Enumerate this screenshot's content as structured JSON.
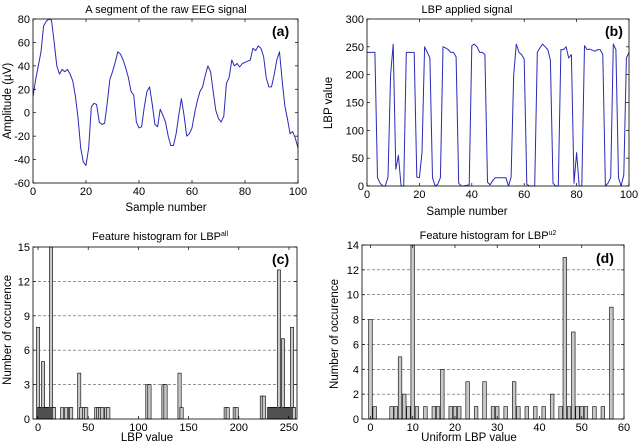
{
  "chart_data": [
    {
      "type": "line",
      "panel_label": "(a)",
      "title": "A segment of the raw EEG signal",
      "xlabel": "Sample number",
      "ylabel": "Amplitude (µV)",
      "xlim": [
        0,
        100
      ],
      "ylim": [
        -60,
        80
      ],
      "xticks": [
        0,
        20,
        40,
        60,
        80,
        100
      ],
      "yticks": [
        -60,
        -40,
        -20,
        0,
        20,
        40,
        60,
        80
      ],
      "grid": false,
      "line_color": "#2a2ab8",
      "series": [
        {
          "x": [
            0,
            1,
            2,
            3,
            4,
            5,
            6,
            7,
            8,
            9,
            10,
            11,
            12,
            13,
            14,
            15,
            16,
            17,
            18,
            19,
            20,
            21,
            22,
            23,
            24,
            25,
            26,
            27,
            28,
            29,
            30,
            31,
            32,
            33,
            34,
            35,
            36,
            37,
            38,
            39,
            40,
            41,
            42,
            43,
            44,
            45,
            46,
            47,
            48,
            49,
            50,
            51,
            52,
            53,
            54,
            55,
            56,
            57,
            58,
            59,
            60,
            61,
            62,
            63,
            64,
            65,
            66,
            67,
            68,
            69,
            70,
            71,
            72,
            73,
            74,
            75,
            76,
            77,
            78,
            79,
            80,
            81,
            82,
            83,
            84,
            85,
            86,
            87,
            88,
            89,
            90,
            91,
            92,
            93,
            94,
            95,
            96,
            97,
            98,
            99,
            100
          ],
          "values": [
            14,
            28,
            40,
            52,
            74,
            78,
            80,
            79,
            60,
            40,
            33,
            37,
            35,
            37,
            33,
            27,
            14,
            -5,
            -30,
            -42,
            -45,
            -30,
            5,
            8,
            7,
            -8,
            -10,
            -9,
            8,
            28,
            35,
            43,
            52,
            50,
            45,
            38,
            30,
            18,
            15,
            -8,
            -13,
            -12,
            5,
            18,
            22,
            7,
            -10,
            -12,
            3,
            -2,
            -8,
            -20,
            -28,
            -28,
            -18,
            -2,
            12,
            -2,
            -20,
            -18,
            -13,
            0,
            10,
            18,
            22,
            32,
            40,
            35,
            18,
            2,
            -5,
            -8,
            -3,
            25,
            30,
            45,
            40,
            42,
            39,
            42,
            43,
            44,
            45,
            55,
            53,
            57,
            55,
            48,
            30,
            22,
            22,
            32,
            45,
            52,
            28,
            6,
            -5,
            -18,
            -16,
            -22,
            -30
          ]
        }
      ]
    },
    {
      "type": "line",
      "panel_label": "(b)",
      "title": "LBP applied signal",
      "xlabel": "Sample number",
      "ylabel": "LBP value",
      "xlim": [
        0,
        100
      ],
      "ylim": [
        0,
        300
      ],
      "xticks": [
        0,
        20,
        40,
        60,
        80,
        100
      ],
      "yticks": [
        0,
        50,
        100,
        150,
        200,
        250,
        300
      ],
      "grid": false,
      "line_color": "#2a2ab8",
      "series": [
        {
          "x": [
            0,
            1,
            2,
            3,
            4,
            5,
            6,
            7,
            8,
            9,
            10,
            11,
            12,
            13,
            14,
            15,
            16,
            17,
            18,
            19,
            20,
            21,
            22,
            23,
            24,
            25,
            26,
            27,
            28,
            29,
            30,
            31,
            32,
            33,
            34,
            35,
            36,
            37,
            38,
            39,
            40,
            41,
            42,
            43,
            44,
            45,
            46,
            47,
            48,
            49,
            50,
            51,
            52,
            53,
            54,
            55,
            56,
            57,
            58,
            59,
            60,
            61,
            62,
            63,
            64,
            65,
            66,
            67,
            68,
            69,
            70,
            71,
            72,
            73,
            74,
            75,
            76,
            77,
            78,
            79,
            80,
            81,
            82,
            83,
            84,
            85,
            86,
            87,
            88,
            89,
            90,
            91,
            92,
            93,
            94,
            95,
            96,
            97,
            98,
            99,
            100
          ],
          "values": [
            240,
            240,
            240,
            240,
            15,
            5,
            0,
            0,
            16,
            200,
            255,
            30,
            55,
            0,
            0,
            240,
            240,
            240,
            240,
            16,
            15,
            60,
            250,
            240,
            230,
            15,
            0,
            3,
            15,
            250,
            248,
            245,
            240,
            240,
            232,
            5,
            0,
            0,
            1,
            2,
            252,
            255,
            250,
            240,
            240,
            236,
            7,
            2,
            10,
            15,
            15,
            15,
            15,
            15,
            0,
            16,
            200,
            255,
            240,
            236,
            228,
            3,
            0,
            0,
            0,
            240,
            248,
            255,
            250,
            245,
            226,
            5,
            0,
            0,
            245,
            245,
            250,
            230,
            236,
            5,
            60,
            0,
            0,
            252,
            245,
            246,
            244,
            242,
            245,
            245,
            236,
            0,
            5,
            15,
            255,
            245,
            15,
            0,
            20,
            230,
            240
          ]
        }
      ]
    },
    {
      "type": "bar",
      "panel_label": "(c)",
      "title": "Feature histogram for LBP",
      "title_superscript": "all",
      "xlabel": "LBP value",
      "ylabel": "Number of occurence",
      "xlim": [
        -5,
        258
      ],
      "ylim": [
        0,
        15
      ],
      "xticks": [
        0,
        50,
        100,
        150,
        200,
        250
      ],
      "yticks": [
        0,
        3,
        6,
        9,
        12,
        15
      ],
      "grid": "horizontal dashed",
      "bar_color": "#c8c8c8",
      "x": [
        0,
        1,
        2,
        3,
        4,
        5,
        6,
        7,
        8,
        9,
        10,
        11,
        12,
        13,
        14,
        15,
        16,
        24,
        28,
        32,
        33,
        41,
        43,
        46,
        48,
        58,
        60,
        62,
        64,
        68,
        70,
        109,
        111,
        125,
        127,
        141,
        143,
        187,
        189,
        196,
        198,
        223,
        225,
        230,
        231,
        232,
        233,
        234,
        235,
        236,
        237,
        238,
        239,
        240,
        241,
        242,
        243,
        244,
        245,
        246,
        247,
        248,
        249,
        250,
        251,
        252,
        253,
        254,
        255
      ],
      "values": [
        8,
        1,
        1,
        1,
        1,
        5,
        1,
        1,
        1,
        1,
        1,
        1,
        1,
        15,
        1,
        1,
        1,
        1,
        1,
        1,
        1,
        4,
        1,
        1,
        1,
        1,
        1,
        1,
        1,
        1,
        1,
        3,
        3,
        3,
        3,
        4,
        1,
        1,
        1,
        1,
        1,
        2,
        2,
        1,
        1,
        1,
        1,
        1,
        1,
        1,
        1,
        1,
        1,
        13,
        1,
        1,
        1,
        7,
        1,
        1,
        1,
        1,
        1,
        1,
        1,
        1,
        8,
        1,
        1
      ]
    },
    {
      "type": "bar",
      "panel_label": "(d)",
      "title": "Feature histogram for LBP",
      "title_superscript": "u2",
      "xlabel": "Uniform LBP value",
      "ylabel": "Number of occurence",
      "xlim": [
        -2,
        60
      ],
      "ylim": [
        0,
        14
      ],
      "xticks": [
        0,
        10,
        20,
        30,
        40,
        50,
        60
      ],
      "yticks": [
        0,
        2,
        4,
        6,
        8,
        10,
        12,
        14
      ],
      "grid": "horizontal dashed",
      "bar_color": "#c8c8c8",
      "x": [
        0,
        1,
        5,
        6,
        7,
        8,
        9,
        10,
        11,
        13,
        15,
        16,
        17,
        19,
        20,
        21,
        23,
        25,
        27,
        29,
        30,
        32,
        34,
        35,
        37,
        39,
        41,
        43,
        45,
        46,
        47,
        48,
        49,
        50,
        51,
        53,
        55,
        57
      ],
      "values": [
        8,
        1,
        1,
        1,
        5,
        2,
        1,
        14,
        1,
        1,
        1,
        1,
        4,
        1,
        1,
        1,
        3,
        1,
        3,
        1,
        1,
        1,
        3,
        1,
        1,
        1,
        1,
        2,
        1,
        13,
        1,
        7,
        1,
        1,
        1,
        1,
        1,
        9
      ]
    }
  ]
}
